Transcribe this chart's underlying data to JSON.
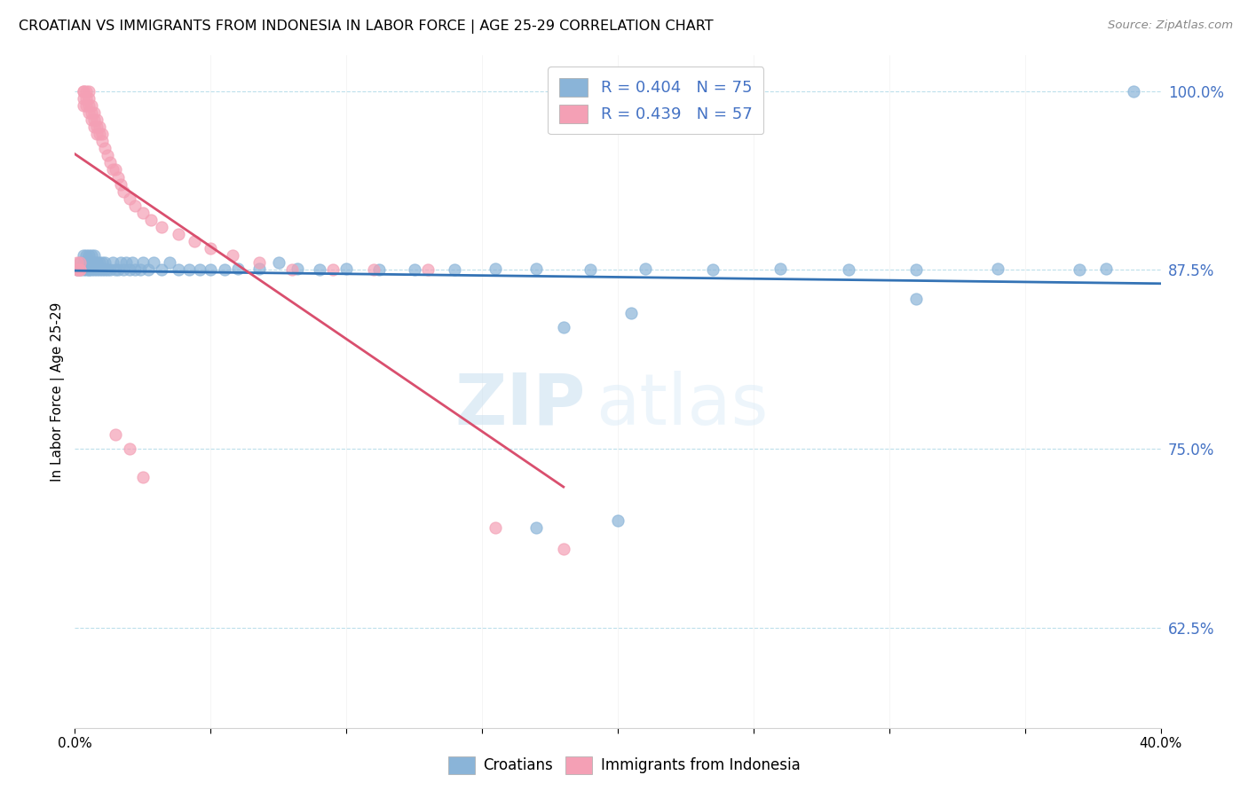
{
  "title": "CROATIAN VS IMMIGRANTS FROM INDONESIA IN LABOR FORCE | AGE 25-29 CORRELATION CHART",
  "source": "Source: ZipAtlas.com",
  "ylabel": "In Labor Force | Age 25-29",
  "ytick_labels": [
    "100.0%",
    "87.5%",
    "75.0%",
    "62.5%"
  ],
  "ytick_vals": [
    1.0,
    0.875,
    0.75,
    0.625
  ],
  "xlim": [
    0.0,
    0.4
  ],
  "ylim": [
    0.555,
    1.025
  ],
  "blue_color": "#8ab4d8",
  "pink_color": "#f4a0b5",
  "blue_line_color": "#3473b5",
  "pink_line_color": "#d94f6e",
  "legend_text_blue": "R = 0.404   N = 75",
  "legend_text_pink": "R = 0.439   N = 57",
  "watermark_zip": "ZIP",
  "watermark_atlas": "atlas",
  "blue_x": [
    0.001,
    0.002,
    0.002,
    0.003,
    0.003,
    0.003,
    0.004,
    0.004,
    0.004,
    0.005,
    0.005,
    0.005,
    0.005,
    0.006,
    0.006,
    0.006,
    0.007,
    0.007,
    0.007,
    0.008,
    0.008,
    0.009,
    0.009,
    0.01,
    0.01,
    0.011,
    0.011,
    0.012,
    0.013,
    0.014,
    0.015,
    0.016,
    0.017,
    0.018,
    0.019,
    0.02,
    0.021,
    0.022,
    0.024,
    0.025,
    0.027,
    0.029,
    0.032,
    0.035,
    0.038,
    0.042,
    0.046,
    0.05,
    0.055,
    0.06,
    0.068,
    0.075,
    0.082,
    0.09,
    0.1,
    0.112,
    0.125,
    0.14,
    0.155,
    0.17,
    0.19,
    0.21,
    0.235,
    0.26,
    0.285,
    0.31,
    0.34,
    0.37,
    0.38,
    0.39,
    0.18,
    0.205,
    0.31,
    0.2,
    0.17
  ],
  "blue_y": [
    0.875,
    0.875,
    0.88,
    0.875,
    0.88,
    0.885,
    0.875,
    0.88,
    0.885,
    0.875,
    0.88,
    0.885,
    0.875,
    0.875,
    0.88,
    0.885,
    0.875,
    0.88,
    0.885,
    0.875,
    0.88,
    0.875,
    0.88,
    0.875,
    0.88,
    0.875,
    0.88,
    0.875,
    0.875,
    0.88,
    0.875,
    0.875,
    0.88,
    0.875,
    0.88,
    0.875,
    0.88,
    0.875,
    0.875,
    0.88,
    0.875,
    0.88,
    0.875,
    0.88,
    0.875,
    0.875,
    0.875,
    0.875,
    0.875,
    0.876,
    0.876,
    0.88,
    0.876,
    0.875,
    0.876,
    0.875,
    0.875,
    0.875,
    0.876,
    0.876,
    0.875,
    0.876,
    0.875,
    0.876,
    0.875,
    0.875,
    0.876,
    0.875,
    0.876,
    1.0,
    0.835,
    0.845,
    0.855,
    0.7,
    0.695
  ],
  "pink_x": [
    0.001,
    0.001,
    0.001,
    0.002,
    0.002,
    0.002,
    0.003,
    0.003,
    0.003,
    0.003,
    0.004,
    0.004,
    0.004,
    0.005,
    0.005,
    0.005,
    0.005,
    0.006,
    0.006,
    0.006,
    0.007,
    0.007,
    0.007,
    0.008,
    0.008,
    0.008,
    0.009,
    0.009,
    0.01,
    0.01,
    0.011,
    0.012,
    0.013,
    0.014,
    0.015,
    0.016,
    0.017,
    0.018,
    0.02,
    0.022,
    0.025,
    0.028,
    0.032,
    0.038,
    0.044,
    0.05,
    0.058,
    0.068,
    0.08,
    0.095,
    0.11,
    0.13,
    0.155,
    0.18,
    0.02,
    0.025,
    0.015
  ],
  "pink_y": [
    0.875,
    0.88,
    0.875,
    0.875,
    0.88,
    0.875,
    0.99,
    0.995,
    1.0,
    1.0,
    0.99,
    0.995,
    1.0,
    0.985,
    0.99,
    0.995,
    1.0,
    0.98,
    0.99,
    0.985,
    0.975,
    0.98,
    0.985,
    0.975,
    0.98,
    0.97,
    0.97,
    0.975,
    0.97,
    0.965,
    0.96,
    0.955,
    0.95,
    0.945,
    0.945,
    0.94,
    0.935,
    0.93,
    0.925,
    0.92,
    0.915,
    0.91,
    0.905,
    0.9,
    0.895,
    0.89,
    0.885,
    0.88,
    0.875,
    0.875,
    0.875,
    0.875,
    0.695,
    0.68,
    0.75,
    0.73,
    0.76
  ]
}
